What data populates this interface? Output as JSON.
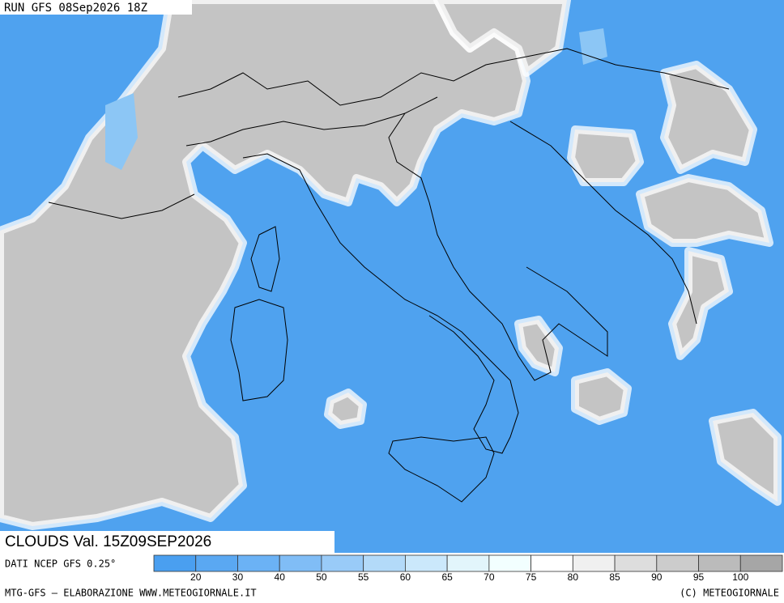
{
  "header": {
    "run": "RUN GFS 08Sep2026 18Z",
    "caption": "CLOUDS Val. 15Z09SEP2026"
  },
  "footer": {
    "source": "DATI NCEP GFS 0.25°",
    "credit": "MTG-GFS — ELABORAZIONE WWW.METEOGIORNALE.IT",
    "copyright": "(C) METEOGIORNALE"
  },
  "legend": {
    "colors": [
      "#4a9ff0",
      "#5aa8f2",
      "#6bb2f5",
      "#80bdf6",
      "#99cbf8",
      "#b3daf9",
      "#cbe8fb",
      "#e2f5fb",
      "#f2ffff",
      "#ffffff",
      "#f0f0f0",
      "#dddddd",
      "#cccccc",
      "#bbbbbb",
      "#a6a6a6"
    ],
    "labels": [
      "20",
      "30",
      "40",
      "50",
      "55",
      "60",
      "65",
      "70",
      "75",
      "80",
      "85",
      "90",
      "95",
      "100"
    ]
  }
}
